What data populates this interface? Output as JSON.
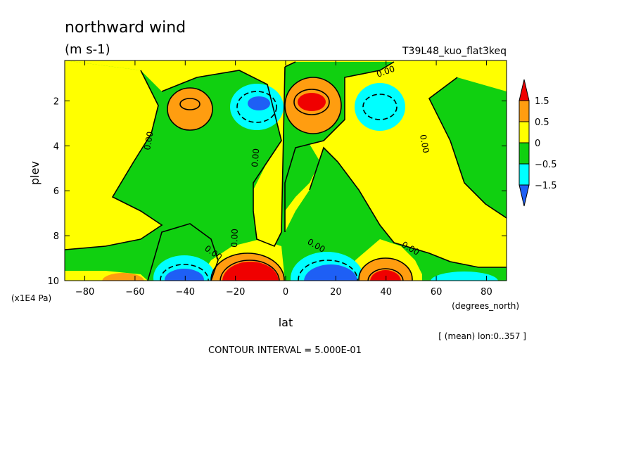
{
  "chart_data": {
    "type": "heatmap",
    "title": "northward wind",
    "units": "(m s-1)",
    "run_label": "T39L48_kuo_flat3keq",
    "xlabel": "lat",
    "ylabel": "plev",
    "x_units": "(degrees_north)",
    "y_units": "(x1E4 Pa)",
    "mean_note": "[ (mean) lon:0..357 ]",
    "contour_interval_text": "CONTOUR INTERVAL = 5.000E-01",
    "contour_label": "0.00",
    "xlim": [
      -88,
      88
    ],
    "ylim": [
      10,
      0.2
    ],
    "x_ticks": [
      -80,
      -60,
      -40,
      -20,
      0,
      20,
      40,
      60,
      80
    ],
    "x_tick_labels": [
      "−80",
      "−60",
      "−40",
      "−20",
      "0",
      "20",
      "40",
      "60",
      "80"
    ],
    "y_ticks": [
      2,
      4,
      6,
      8,
      10
    ],
    "y_tick_labels": [
      "2",
      "4",
      "6",
      "8",
      "10"
    ],
    "colorbar": {
      "levels": [
        -1.5,
        -0.5,
        0,
        0.5,
        1.5
      ],
      "labels": [
        "−1.5",
        "−0.5",
        "0",
        "0.5",
        "1.5"
      ],
      "colors": [
        "#1e5ff5",
        "#00ffff",
        "#10d010",
        "#ffff00",
        "#ff9d10",
        "#f00000"
      ]
    },
    "field": {
      "description_levels": "sign regions of northward wind",
      "extrema": [
        {
          "lat": -38,
          "plev": 2.0,
          "sign": "positive",
          "level": 1.0
        },
        {
          "lat": -11,
          "plev": 2.0,
          "sign": "negative",
          "level": -1.5
        },
        {
          "lat": 11,
          "plev": 2.0,
          "sign": "positive",
          "level": 1.5
        },
        {
          "lat": 37,
          "plev": 2.0,
          "sign": "negative",
          "level": -1.0
        },
        {
          "lat": -45,
          "plev": 9.8,
          "sign": "negative",
          "level": -1.5
        },
        {
          "lat": -14,
          "plev": 9.8,
          "sign": "positive",
          "level": 1.5
        },
        {
          "lat": 12,
          "plev": 9.8,
          "sign": "negative",
          "level": -1.5
        },
        {
          "lat": 42,
          "plev": 9.8,
          "sign": "positive",
          "level": 1.5
        },
        {
          "lat": 66,
          "plev": 9.9,
          "sign": "negative",
          "level": -1.0
        }
      ]
    }
  }
}
